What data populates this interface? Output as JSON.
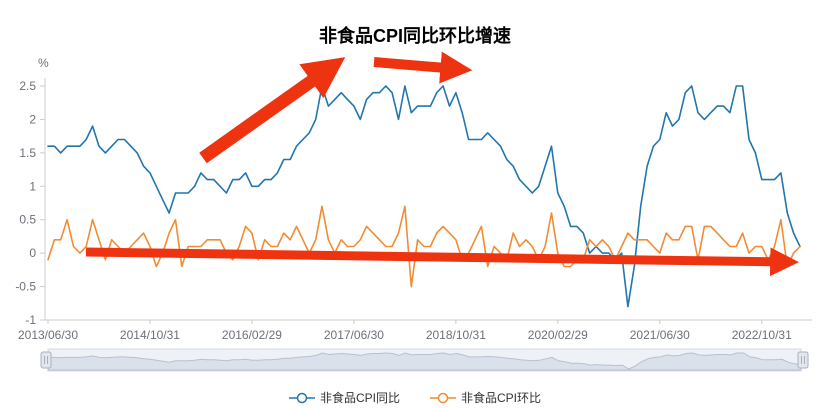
{
  "chart_data": {
    "type": "line",
    "title": "非食品CPI同比环比增速",
    "y_unit": "%",
    "ylim": [
      -1,
      2.5
    ],
    "y_ticks": [
      "-1",
      "-0.5",
      "0",
      "0.5",
      "1",
      "1.5",
      "2",
      "2.5"
    ],
    "x_tick_labels": [
      "2013/06/30",
      "2014/10/31",
      "2016/02/29",
      "2017/06/30",
      "2018/10/31",
      "2020/02/29",
      "2021/06/30",
      "2022/10/31"
    ],
    "x_tick_indices": [
      0,
      16,
      32,
      48,
      64,
      80,
      96,
      112
    ],
    "grid": false,
    "legend_position": "bottom",
    "x": [
      "2013/06/30",
      "2013/07/31",
      "2013/08/31",
      "2013/09/30",
      "2013/10/31",
      "2013/11/30",
      "2013/12/31",
      "2014/01/31",
      "2014/02/28",
      "2014/03/31",
      "2014/04/30",
      "2014/05/31",
      "2014/06/30",
      "2014/07/31",
      "2014/08/31",
      "2014/09/30",
      "2014/10/31",
      "2014/11/30",
      "2014/12/31",
      "2015/01/31",
      "2015/02/28",
      "2015/03/31",
      "2015/04/30",
      "2015/05/31",
      "2015/06/30",
      "2015/07/31",
      "2015/08/31",
      "2015/09/30",
      "2015/10/31",
      "2015/11/30",
      "2015/12/31",
      "2016/01/31",
      "2016/02/29",
      "2016/03/31",
      "2016/04/30",
      "2016/05/31",
      "2016/06/30",
      "2016/07/31",
      "2016/08/31",
      "2016/09/30",
      "2016/10/31",
      "2016/11/30",
      "2016/12/31",
      "2017/01/31",
      "2017/02/28",
      "2017/03/31",
      "2017/04/30",
      "2017/05/31",
      "2017/06/30",
      "2017/07/31",
      "2017/08/31",
      "2017/09/30",
      "2017/10/31",
      "2017/11/30",
      "2017/12/31",
      "2018/01/31",
      "2018/02/28",
      "2018/03/31",
      "2018/04/30",
      "2018/05/31",
      "2018/06/30",
      "2018/07/31",
      "2018/08/31",
      "2018/09/30",
      "2018/10/31",
      "2018/11/30",
      "2018/12/31",
      "2019/01/31",
      "2019/02/28",
      "2019/03/31",
      "2019/04/30",
      "2019/05/31",
      "2019/06/30",
      "2019/07/31",
      "2019/08/31",
      "2019/09/30",
      "2019/10/31",
      "2019/11/30",
      "2019/12/31",
      "2020/01/31",
      "2020/02/29",
      "2020/03/31",
      "2020/04/30",
      "2020/05/31",
      "2020/06/30",
      "2020/07/31",
      "2020/08/31",
      "2020/09/30",
      "2020/10/31",
      "2020/11/30",
      "2020/12/31",
      "2021/01/31",
      "2021/02/28",
      "2021/03/31",
      "2021/04/30",
      "2021/05/31",
      "2021/06/30",
      "2021/07/31",
      "2021/08/31",
      "2021/09/30",
      "2021/10/31",
      "2021/11/30",
      "2021/12/31",
      "2022/01/31",
      "2022/02/28",
      "2022/03/31",
      "2022/04/30",
      "2022/05/31",
      "2022/06/30",
      "2022/07/31",
      "2022/08/31",
      "2022/09/30",
      "2022/10/31",
      "2022/11/30",
      "2022/12/31",
      "2023/01/31",
      "2023/02/28",
      "2023/03/31",
      "2023/04/30"
    ],
    "series": [
      {
        "name": "非食品CPI同比",
        "color": "#2176ae",
        "values": [
          1.6,
          1.6,
          1.5,
          1.6,
          1.6,
          1.6,
          1.7,
          1.9,
          1.6,
          1.5,
          1.6,
          1.7,
          1.7,
          1.6,
          1.5,
          1.3,
          1.2,
          1.0,
          0.8,
          0.6,
          0.9,
          0.9,
          0.9,
          1.0,
          1.2,
          1.1,
          1.1,
          1.0,
          0.9,
          1.1,
          1.1,
          1.2,
          1.0,
          1.0,
          1.1,
          1.1,
          1.2,
          1.4,
          1.4,
          1.6,
          1.7,
          1.8,
          2.0,
          2.5,
          2.2,
          2.3,
          2.4,
          2.3,
          2.2,
          2.0,
          2.3,
          2.4,
          2.4,
          2.5,
          2.4,
          2.0,
          2.5,
          2.1,
          2.2,
          2.2,
          2.2,
          2.4,
          2.5,
          2.2,
          2.4,
          2.1,
          1.7,
          1.7,
          1.7,
          1.8,
          1.7,
          1.6,
          1.4,
          1.3,
          1.1,
          1.0,
          0.9,
          1.0,
          1.3,
          1.6,
          0.9,
          0.7,
          0.4,
          0.4,
          0.3,
          0.0,
          0.1,
          0.0,
          0.0,
          -0.1,
          0.0,
          -0.8,
          -0.2,
          0.7,
          1.3,
          1.6,
          1.7,
          2.1,
          1.9,
          2.0,
          2.4,
          2.5,
          2.1,
          2.0,
          2.1,
          2.2,
          2.2,
          2.1,
          2.5,
          2.5,
          1.7,
          1.5,
          1.1,
          1.1,
          1.1,
          1.2,
          0.6,
          0.3,
          0.1
        ]
      },
      {
        "name": "非食品CPI环比",
        "color": "#f08c35",
        "values": [
          -0.1,
          0.2,
          0.2,
          0.5,
          0.1,
          0.0,
          0.1,
          0.5,
          0.2,
          -0.1,
          0.2,
          0.1,
          0.0,
          0.1,
          0.2,
          0.3,
          0.1,
          -0.2,
          0.0,
          0.3,
          0.5,
          -0.2,
          0.1,
          0.1,
          0.1,
          0.2,
          0.2,
          0.2,
          0.0,
          -0.1,
          0.1,
          0.4,
          0.3,
          -0.1,
          0.2,
          0.1,
          0.1,
          0.3,
          0.2,
          0.4,
          0.2,
          0.0,
          0.2,
          0.7,
          0.2,
          0.0,
          0.2,
          0.1,
          0.1,
          0.2,
          0.4,
          0.3,
          0.2,
          0.1,
          0.1,
          0.3,
          0.7,
          -0.5,
          0.2,
          0.1,
          0.1,
          0.3,
          0.4,
          0.3,
          0.2,
          -0.1,
          0.0,
          0.2,
          0.4,
          -0.2,
          0.1,
          0.0,
          -0.1,
          0.3,
          0.1,
          0.2,
          0.1,
          -0.1,
          0.1,
          0.6,
          0.0,
          -0.2,
          -0.2,
          -0.1,
          -0.1,
          0.2,
          0.1,
          0.2,
          0.1,
          -0.1,
          0.1,
          0.3,
          0.2,
          0.2,
          0.2,
          0.1,
          0.0,
          0.3,
          0.2,
          0.2,
          0.4,
          0.4,
          -0.1,
          0.4,
          0.4,
          0.3,
          0.2,
          0.1,
          0.1,
          0.3,
          0.0,
          0.1,
          0.1,
          -0.1,
          0.1,
          0.5,
          -0.2,
          0.0,
          0.1
        ]
      }
    ]
  },
  "annotations": {
    "arrow_color": "#ee3311",
    "arrows": [
      "thick-arrow-up-toward-title",
      "thick-arrow-right-of-title",
      "long-flat-arrow-along-zero-line"
    ]
  }
}
